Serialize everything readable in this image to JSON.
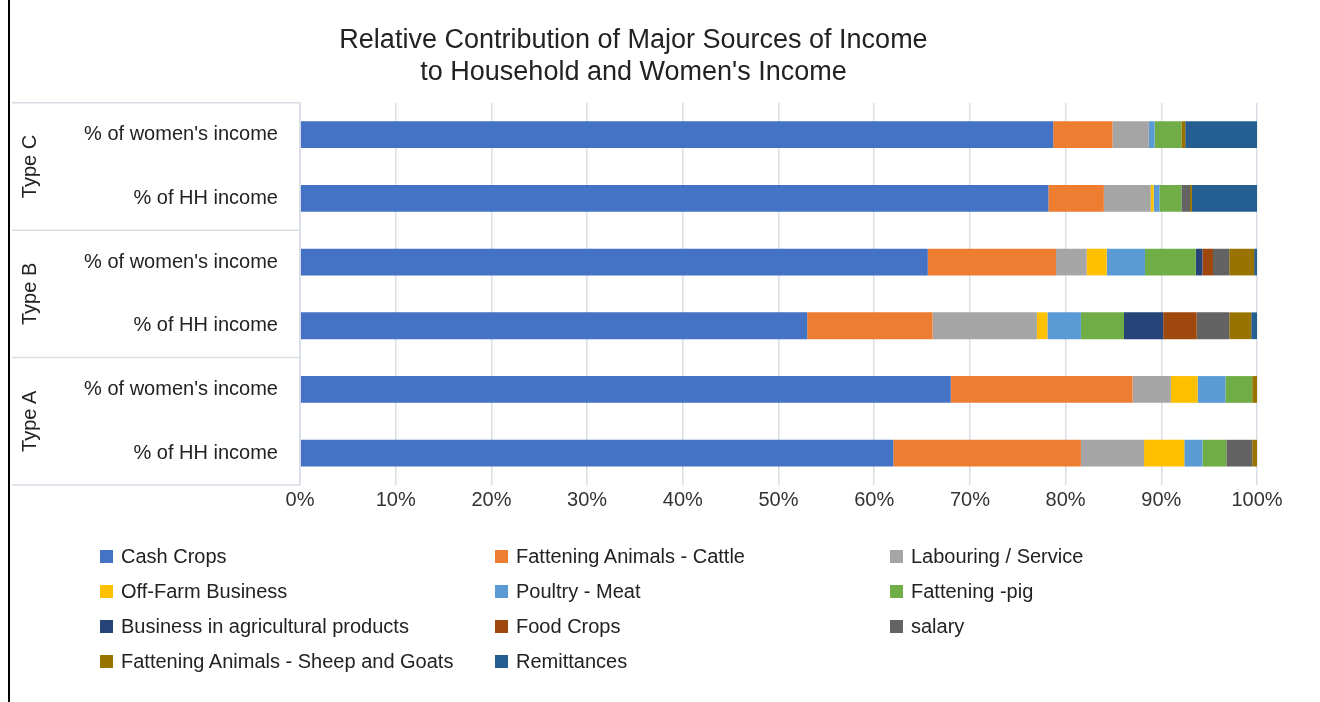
{
  "chart_data": {
    "type": "bar",
    "orientation": "horizontal",
    "stacked": true,
    "title": "Relative Contribution of Major Sources of Income\nto Household and Women's Income",
    "categories": [
      "% of women's income",
      "% of HH income",
      "% of women's income",
      "% of HH income",
      "% of women's income",
      "% of HH income"
    ],
    "annotations": [
      "Type C",
      "Type B",
      "Type A"
    ],
    "series": [
      {
        "name": "Cash Crops",
        "color": "#4472c4",
        "values": [
          78.7,
          78.2,
          65.6,
          53.0,
          68.0,
          62.0
        ]
      },
      {
        "name": "Fattening Animals - Cattle",
        "color": "#ed7d31",
        "values": [
          6.2,
          5.8,
          13.4,
          13.1,
          19.0,
          19.6
        ]
      },
      {
        "name": "Labouring / Service",
        "color": "#a5a5a5",
        "values": [
          3.8,
          4.9,
          3.2,
          10.9,
          4.0,
          6.6
        ]
      },
      {
        "name": "Off-Farm Business",
        "color": "#ffc000",
        "values": [
          0,
          0.3,
          2.1,
          1.1,
          2.8,
          4.2
        ]
      },
      {
        "name": "Poultry - Meat",
        "color": "#5b9bd5",
        "values": [
          0.6,
          0.6,
          4.0,
          3.5,
          2.9,
          1.9
        ]
      },
      {
        "name": "Fattening -pig",
        "color": "#70ad47",
        "values": [
          2.8,
          2.3,
          5.3,
          4.5,
          2.8,
          2.5
        ]
      },
      {
        "name": "Business in agricultural products",
        "color": "#264478",
        "values": [
          0,
          0,
          0.7,
          4.1,
          0,
          0
        ]
      },
      {
        "name": "Food Crops",
        "color": "#9e480e",
        "values": [
          0,
          0,
          1.1,
          3.5,
          0,
          0
        ]
      },
      {
        "name": "salary",
        "color": "#636363",
        "values": [
          0,
          0.9,
          1.7,
          3.4,
          0,
          2.7
        ]
      },
      {
        "name": "Fattening Animals - Sheep and Goats",
        "color": "#997300",
        "values": [
          0.4,
          0.2,
          2.6,
          2.3,
          0.5,
          0.5
        ]
      },
      {
        "name": "Remittances",
        "color": "#255e91",
        "values": [
          7.5,
          6.8,
          0.3,
          0.6,
          0,
          0
        ]
      }
    ],
    "xlim": [
      0,
      100
    ],
    "xticks": [
      {
        "value": 0,
        "label": "0%"
      },
      {
        "value": 10,
        "label": "10%"
      },
      {
        "value": 20,
        "label": "20%"
      },
      {
        "value": 30,
        "label": "30%"
      },
      {
        "value": 40,
        "label": "40%"
      },
      {
        "value": 50,
        "label": "50%"
      },
      {
        "value": 60,
        "label": "60%"
      },
      {
        "value": 70,
        "label": "70%"
      },
      {
        "value": 80,
        "label": "80%"
      },
      {
        "value": 90,
        "label": "90%"
      },
      {
        "value": 100,
        "label": "100%"
      }
    ],
    "grid": "x",
    "legend": "bottom"
  }
}
